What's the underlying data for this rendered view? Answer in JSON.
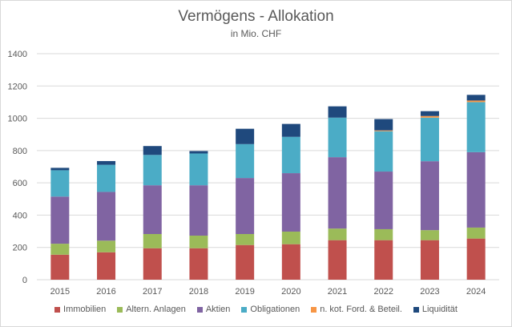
{
  "chart_data": {
    "type": "bar",
    "stacked": true,
    "title": "Vermögens - Allokation",
    "subtitle": "in Mio. CHF",
    "categories": [
      "2015",
      "2016",
      "2017",
      "2018",
      "2019",
      "2020",
      "2021",
      "2022",
      "2023",
      "2024"
    ],
    "ylim": [
      0,
      1400
    ],
    "yticks": [
      "0",
      "200",
      "400",
      "600",
      "800",
      "1000",
      "1200",
      "1400"
    ],
    "grid": true,
    "legend_position": "bottom",
    "series": [
      {
        "name": "Immobilien",
        "color": "#c0504d",
        "values": [
          155,
          170,
          195,
          195,
          215,
          220,
          245,
          245,
          245,
          255
        ]
      },
      {
        "name": "Altern. Anlagen",
        "color": "#9bbb59",
        "values": [
          68,
          72,
          88,
          78,
          68,
          78,
          72,
          68,
          62,
          68
        ]
      },
      {
        "name": "Aktien",
        "color": "#8064a2",
        "values": [
          292,
          302,
          302,
          312,
          347,
          362,
          442,
          357,
          427,
          467
        ]
      },
      {
        "name": "Obligationen",
        "color": "#4bacc6",
        "values": [
          163,
          168,
          188,
          197,
          210,
          225,
          245,
          250,
          270,
          310
        ]
      },
      {
        "name": "n. kot. Ford. & Beteil.",
        "color": "#f79646",
        "values": [
          0,
          0,
          0,
          0,
          0,
          0,
          0,
          5,
          10,
          10
        ]
      },
      {
        "name": "Liquidität",
        "color": "#1f497d",
        "values": [
          15,
          23,
          55,
          15,
          95,
          80,
          70,
          70,
          30,
          35
        ]
      }
    ]
  }
}
